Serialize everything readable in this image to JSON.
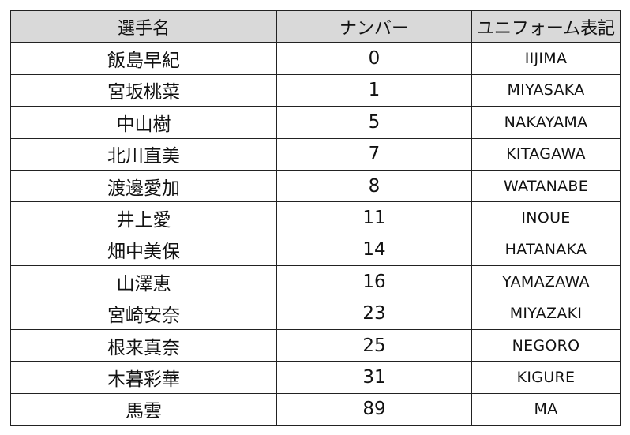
{
  "table": {
    "headers": {
      "name": "選手名",
      "number": "ナンバー",
      "uniform": "ユニフォーム表記"
    },
    "rows": [
      {
        "name": "飯島早紀",
        "number": "0",
        "uniform": "IIJIMA"
      },
      {
        "name": "宮坂桃菜",
        "number": "1",
        "uniform": "MIYASAKA"
      },
      {
        "name": "中山樹",
        "number": "5",
        "uniform": "NAKAYAMA"
      },
      {
        "name": "北川直美",
        "number": "7",
        "uniform": "KITAGAWA"
      },
      {
        "name": "渡邊愛加",
        "number": "8",
        "uniform": "WATANABE"
      },
      {
        "name": "井上愛",
        "number": "11",
        "uniform": "INOUE"
      },
      {
        "name": "畑中美保",
        "number": "14",
        "uniform": "HATANAKA"
      },
      {
        "name": "山澤恵",
        "number": "16",
        "uniform": "YAMAZAWA"
      },
      {
        "name": "宮崎安奈",
        "number": "23",
        "uniform": "MIYAZAKI"
      },
      {
        "name": "根来真奈",
        "number": "25",
        "uniform": "NEGORO"
      },
      {
        "name": "木暮彩華",
        "number": "31",
        "uniform": "KIGURE"
      },
      {
        "name": "馬雲",
        "number": "89",
        "uniform": "MA"
      }
    ]
  },
  "colors": {
    "header_background": "#d9d9d9",
    "border": "#222222",
    "text": "#111111"
  }
}
